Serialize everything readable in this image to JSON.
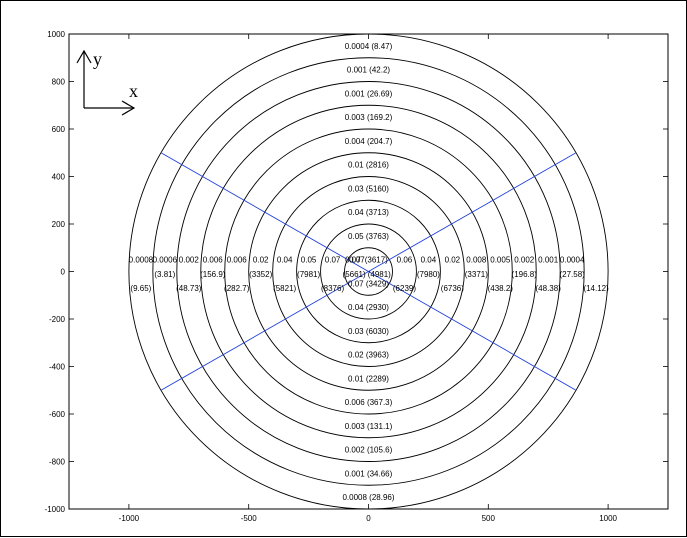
{
  "chart_data": {
    "type": "scatter",
    "title": "",
    "xlabel": "",
    "ylabel": "",
    "xlim": [
      -1250,
      1250
    ],
    "ylim": [
      -1000,
      1000
    ],
    "x_ticks": [
      -1000,
      -500,
      0,
      500,
      1000
    ],
    "y_ticks": [
      -1000,
      -800,
      -600,
      -400,
      -200,
      0,
      200,
      400,
      600,
      800,
      1000
    ],
    "grid": false,
    "legend": "none",
    "colors": {
      "circles": "#000000",
      "lines": "#1f3fdb",
      "axes": "#000000"
    },
    "circle_radii": [
      100,
      200,
      300,
      400,
      500,
      600,
      700,
      800,
      900,
      1000
    ],
    "radial_lines": [
      {
        "from": [
          -866,
          500
        ],
        "to": [
          866,
          -500
        ]
      },
      {
        "from": [
          -866,
          -500
        ],
        "to": [
          866,
          500
        ]
      }
    ],
    "axis_key": {
      "y": "y",
      "x": "x"
    },
    "annotations": [
      {
        "x": 0,
        "y": 950,
        "text": "0.0004 (8.47)"
      },
      {
        "x": 0,
        "y": 850,
        "text": "0.001 (42.2)"
      },
      {
        "x": 0,
        "y": 750,
        "text": "0.001 (26.69)"
      },
      {
        "x": 0,
        "y": 650,
        "text": "0.003 (169.2)"
      },
      {
        "x": 0,
        "y": 550,
        "text": "0.004 (204.7)"
      },
      {
        "x": 0,
        "y": 450,
        "text": "0.01 (2816)"
      },
      {
        "x": 0,
        "y": 350,
        "text": "0.03 (5160)"
      },
      {
        "x": 0,
        "y": 250,
        "text": "0.04 (3713)"
      },
      {
        "x": 0,
        "y": 150,
        "text": "0.05 (3763)"
      },
      {
        "x": 0,
        "y": 50,
        "text": "0.07(3617)"
      },
      {
        "x": 0,
        "y": -50,
        "text": "0.07 (3429)"
      },
      {
        "x": 0,
        "y": -150,
        "text": "0.04 (2930)"
      },
      {
        "x": 0,
        "y": -250,
        "text": "0.03 (6030)"
      },
      {
        "x": 0,
        "y": -350,
        "text": "0.02 (3963)"
      },
      {
        "x": 0,
        "y": -450,
        "text": "0.01 (2289)"
      },
      {
        "x": 0,
        "y": -550,
        "text": "0.006 (367.3)"
      },
      {
        "x": 0,
        "y": -650,
        "text": "0.003 (131.1)"
      },
      {
        "x": 0,
        "y": -750,
        "text": "0.002 (105.6)"
      },
      {
        "x": 0,
        "y": -850,
        "text": "0.001 (34.66)"
      },
      {
        "x": 0,
        "y": -950,
        "text": "0.0008 (28.96)"
      },
      {
        "x": -950,
        "y": 50,
        "text": "0.0008"
      },
      {
        "x": -850,
        "y": 50,
        "text": "0.0006"
      },
      {
        "x": -750,
        "y": 50,
        "text": "0.002"
      },
      {
        "x": -650,
        "y": 50,
        "text": "0.006"
      },
      {
        "x": -550,
        "y": 50,
        "text": "0.006"
      },
      {
        "x": -450,
        "y": 50,
        "text": "0.02"
      },
      {
        "x": -350,
        "y": 50,
        "text": "0.04"
      },
      {
        "x": -250,
        "y": 50,
        "text": "0.05"
      },
      {
        "x": -150,
        "y": 50,
        "text": "0.07"
      },
      {
        "x": -65,
        "y": 50,
        "text": "0.07"
      },
      {
        "x": 150,
        "y": 50,
        "text": "0.06"
      },
      {
        "x": 250,
        "y": 50,
        "text": "0.04"
      },
      {
        "x": 350,
        "y": 50,
        "text": "0.02"
      },
      {
        "x": 450,
        "y": 50,
        "text": "0.008"
      },
      {
        "x": 550,
        "y": 50,
        "text": "0.005"
      },
      {
        "x": 650,
        "y": 50,
        "text": "0.002"
      },
      {
        "x": 750,
        "y": 50,
        "text": "0.001"
      },
      {
        "x": 850,
        "y": 50,
        "text": "0.0004"
      },
      {
        "x": -850,
        "y": -10,
        "text": "(3.81)"
      },
      {
        "x": -650,
        "y": -10,
        "text": "(156.9)"
      },
      {
        "x": -450,
        "y": -10,
        "text": "(3352)"
      },
      {
        "x": -250,
        "y": -10,
        "text": "(7981)"
      },
      {
        "x": -60,
        "y": -10,
        "text": "(5661)"
      },
      {
        "x": 45,
        "y": -10,
        "text": "(4981)"
      },
      {
        "x": 250,
        "y": -10,
        "text": "(7980)"
      },
      {
        "x": 450,
        "y": -10,
        "text": "(3371)"
      },
      {
        "x": 650,
        "y": -10,
        "text": "(196.8)"
      },
      {
        "x": 850,
        "y": -10,
        "text": "(27.58)"
      },
      {
        "x": -950,
        "y": -70,
        "text": "(9.65)"
      },
      {
        "x": -750,
        "y": -70,
        "text": "(48.73)"
      },
      {
        "x": -550,
        "y": -70,
        "text": "(282.7)"
      },
      {
        "x": -350,
        "y": -70,
        "text": "(5821)"
      },
      {
        "x": -150,
        "y": -70,
        "text": "(8376)"
      },
      {
        "x": 150,
        "y": -70,
        "text": "(6239)"
      },
      {
        "x": 350,
        "y": -70,
        "text": "(6736)"
      },
      {
        "x": 550,
        "y": -70,
        "text": "(438.2)"
      },
      {
        "x": 750,
        "y": -70,
        "text": "(48.38)"
      },
      {
        "x": 950,
        "y": -70,
        "text": "(14.12)"
      }
    ]
  }
}
